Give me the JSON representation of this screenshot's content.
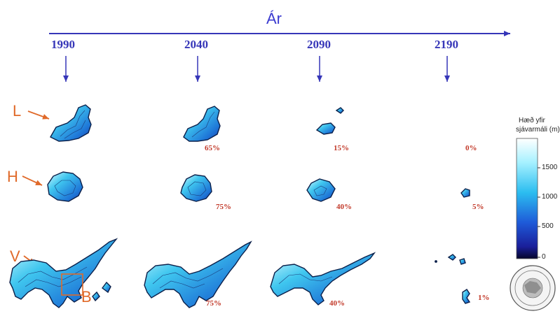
{
  "axis": {
    "title": "Ár",
    "years": [
      "1990",
      "2040",
      "2090",
      "2190"
    ]
  },
  "glaciers": [
    {
      "label": "L",
      "percents": [
        "",
        "65%",
        "15%",
        "0%"
      ]
    },
    {
      "label": "H",
      "percents": [
        "",
        "75%",
        "40%",
        "5%"
      ]
    },
    {
      "label": "V",
      "percents": [
        "",
        "75%",
        "40%",
        "1%"
      ]
    }
  ],
  "box_label": "B",
  "legend": {
    "title_line1": "Hæð yfir",
    "title_line2": "sjávarmáli (m)",
    "ticks": [
      "1500",
      "1000",
      "500",
      "0"
    ]
  },
  "colors": {
    "axis": "#3636b8",
    "percent": "#c23a2a",
    "annotation": "#e06a2a"
  }
}
